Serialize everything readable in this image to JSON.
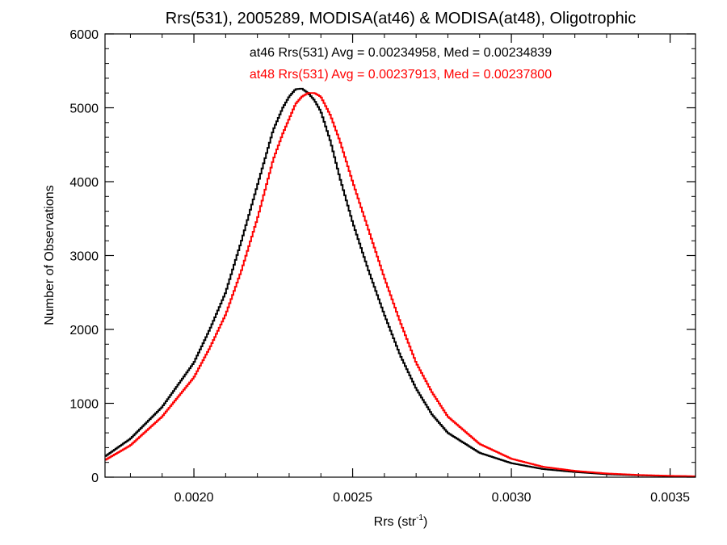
{
  "chart_data": {
    "type": "line",
    "step": true,
    "title": "Rrs(531), 2005289, MODISA(at46) & MODISA(at48), Oligotrophic",
    "xlabel_main": "Rrs (str",
    "xlabel_sup": "-1",
    "xlabel_end": ")",
    "ylabel": "Number of Observations",
    "xlim": [
      0.00172,
      0.00358
    ],
    "ylim": [
      0,
      6000
    ],
    "x_ticks": [
      {
        "value": 0.002,
        "label": "0.0020"
      },
      {
        "value": 0.0025,
        "label": "0.0025"
      },
      {
        "value": 0.003,
        "label": "0.0030"
      },
      {
        "value": 0.0035,
        "label": "0.0035"
      }
    ],
    "y_ticks": [
      {
        "value": 0,
        "label": "0"
      },
      {
        "value": 1000,
        "label": "1000"
      },
      {
        "value": 2000,
        "label": "2000"
      },
      {
        "value": 3000,
        "label": "3000"
      },
      {
        "value": 4000,
        "label": "4000"
      },
      {
        "value": 5000,
        "label": "5000"
      },
      {
        "value": 6000,
        "label": "6000"
      }
    ],
    "x_minor_step": 0.0001,
    "y_minor_step": 200,
    "grid": false,
    "legend_placement": "top-center",
    "series": [
      {
        "name": "at46",
        "color": "#000000",
        "label": "at46 Rrs(531) Avg = 0.00234958, Med = 0.00234839",
        "x": [
          0.00172,
          0.0018,
          0.0019,
          0.002,
          0.00205,
          0.0021,
          0.00215,
          0.0022,
          0.00225,
          0.00228,
          0.0023,
          0.00232,
          0.00234,
          0.00236,
          0.00238,
          0.0024,
          0.00243,
          0.00246,
          0.0025,
          0.00255,
          0.0026,
          0.00265,
          0.0027,
          0.00275,
          0.0028,
          0.0029,
          0.003,
          0.0031,
          0.0032,
          0.0033,
          0.0034,
          0.0035,
          0.00358
        ],
        "y": [
          280,
          520,
          950,
          1550,
          2000,
          2500,
          3200,
          3950,
          4700,
          5000,
          5150,
          5250,
          5260,
          5200,
          5100,
          4950,
          4550,
          4050,
          3450,
          2800,
          2200,
          1650,
          1200,
          850,
          600,
          330,
          190,
          110,
          70,
          40,
          25,
          15,
          10
        ]
      },
      {
        "name": "at48",
        "color": "#ff0000",
        "label": "at48 Rrs(531) Avg = 0.00237913, Med = 0.00237800",
        "x": [
          0.00172,
          0.0018,
          0.0019,
          0.002,
          0.00205,
          0.0021,
          0.00215,
          0.0022,
          0.00225,
          0.00228,
          0.0023,
          0.00232,
          0.00234,
          0.00236,
          0.00238,
          0.0024,
          0.00243,
          0.00246,
          0.0025,
          0.00255,
          0.0026,
          0.00265,
          0.0027,
          0.00275,
          0.0028,
          0.0029,
          0.003,
          0.0031,
          0.0032,
          0.0033,
          0.0034,
          0.0035,
          0.00358
        ],
        "y": [
          230,
          430,
          820,
          1350,
          1750,
          2200,
          2800,
          3500,
          4300,
          4650,
          4850,
          5050,
          5150,
          5200,
          5200,
          5150,
          4900,
          4550,
          4000,
          3350,
          2700,
          2100,
          1550,
          1150,
          820,
          450,
          250,
          140,
          85,
          50,
          30,
          18,
          12
        ]
      }
    ]
  }
}
